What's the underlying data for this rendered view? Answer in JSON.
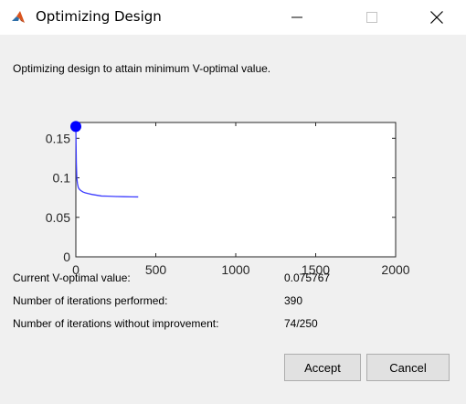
{
  "window": {
    "title": "Optimizing Design",
    "minimize_icon": "minimize-icon",
    "maximize_icon": "maximize-icon",
    "close_icon": "close-icon",
    "app_icon": "matlab-icon"
  },
  "message": "Optimizing design to attain minimum V-optimal value.",
  "info": {
    "current_label": "Current V-optimal value:",
    "current_value": "0.075767",
    "iterations_label": "Number of iterations performed:",
    "iterations_value": "390",
    "no_improve_label": "Number of iterations without improvement:",
    "no_improve_value": "74/250"
  },
  "buttons": {
    "accept": "Accept",
    "cancel": "Cancel"
  },
  "colors": {
    "line": "#3b3bff",
    "marker": "#0000ff",
    "background": "#f0f0f0"
  },
  "chart_data": {
    "type": "line",
    "title": "",
    "xlabel": "",
    "ylabel": "",
    "xlim": [
      0,
      2000
    ],
    "ylim": [
      0,
      0.17
    ],
    "x_ticks": [
      "0",
      "500",
      "1000",
      "1500",
      "2000"
    ],
    "y_ticks": [
      "0",
      "0.05",
      "0.1",
      "0.15"
    ],
    "grid": false,
    "series": [
      {
        "x": [
          0,
          3,
          6,
          10,
          15,
          20,
          30,
          45,
          60,
          80,
          100,
          130,
          160,
          200,
          250,
          300,
          350,
          390
        ],
        "values": [
          0.165,
          0.12,
          0.1,
          0.093,
          0.088,
          0.086,
          0.084,
          0.082,
          0.081,
          0.08,
          0.079,
          0.078,
          0.077,
          0.0768,
          0.0763,
          0.0761,
          0.0759,
          0.0758
        ]
      }
    ],
    "marker": {
      "x": 0,
      "y": 0.165
    }
  }
}
